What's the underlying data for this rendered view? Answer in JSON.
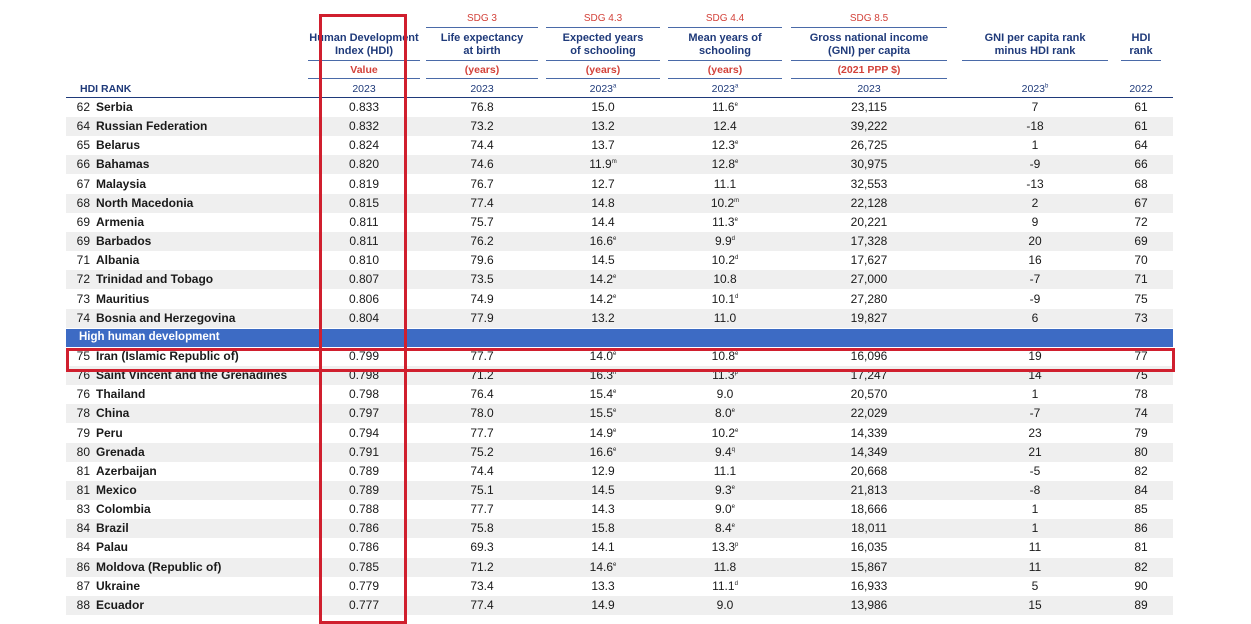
{
  "header": {
    "hdi_rank_label": "HDI RANK",
    "columns": [
      {
        "key": "hdi",
        "sdg": "",
        "title_line1": "Human Development",
        "title_line2": "Index (HDI)",
        "unit": "Value",
        "year": "2023",
        "year_sup": ""
      },
      {
        "key": "life",
        "sdg": "SDG 3",
        "title_line1": "Life expectancy",
        "title_line2": "at birth",
        "unit": "(years)",
        "year": "2023",
        "year_sup": ""
      },
      {
        "key": "exp",
        "sdg": "SDG 4.3",
        "title_line1": "Expected years",
        "title_line2": "of schooling",
        "unit": "(years)",
        "year": "2023",
        "year_sup": "a"
      },
      {
        "key": "mean",
        "sdg": "SDG 4.4",
        "title_line1": "Mean years of",
        "title_line2": "schooling",
        "unit": "(years)",
        "year": "2023",
        "year_sup": "a"
      },
      {
        "key": "gni",
        "sdg": "SDG 8.5",
        "title_line1": "Gross national income",
        "title_line2": "(GNI) per capita",
        "unit": "(2021 PPP $)",
        "year": "2023",
        "year_sup": ""
      },
      {
        "key": "gnirank",
        "sdg": "",
        "title_line1": "GNI per capita rank",
        "title_line2": "minus HDI rank",
        "unit": "",
        "year": "2023",
        "year_sup": "b"
      },
      {
        "key": "hdirank",
        "sdg": "",
        "title_line1": "HDI",
        "title_line2": "rank",
        "unit": "",
        "year": "2022",
        "year_sup": ""
      }
    ]
  },
  "group_band": "High human development",
  "rows": [
    {
      "rank": "62",
      "country": "Serbia",
      "hdi": "0.833",
      "life": "76.8",
      "exp": "15.0",
      "exp_sup": "",
      "mean": "11.6",
      "mean_sup": "e",
      "gni": "23,115",
      "gnirank": "7",
      "hdirank": "61"
    },
    {
      "rank": "64",
      "country": "Russian Federation",
      "hdi": "0.832",
      "life": "73.2",
      "exp": "13.2",
      "exp_sup": "",
      "mean": "12.4",
      "mean_sup": "",
      "gni": "39,222",
      "gnirank": "-18",
      "hdirank": "61"
    },
    {
      "rank": "65",
      "country": "Belarus",
      "hdi": "0.824",
      "life": "74.4",
      "exp": "13.7",
      "exp_sup": "",
      "mean": "12.3",
      "mean_sup": "e",
      "gni": "26,725",
      "gnirank": "1",
      "hdirank": "64"
    },
    {
      "rank": "66",
      "country": "Bahamas",
      "hdi": "0.820",
      "life": "74.6",
      "exp": "11.9",
      "exp_sup": "m",
      "mean": "12.8",
      "mean_sup": "e",
      "gni": "30,975",
      "gnirank": "-9",
      "hdirank": "66"
    },
    {
      "rank": "67",
      "country": "Malaysia",
      "hdi": "0.819",
      "life": "76.7",
      "exp": "12.7",
      "exp_sup": "",
      "mean": "11.1",
      "mean_sup": "",
      "gni": "32,553",
      "gnirank": "-13",
      "hdirank": "68"
    },
    {
      "rank": "68",
      "country": "North Macedonia",
      "hdi": "0.815",
      "life": "77.4",
      "exp": "14.8",
      "exp_sup": "",
      "mean": "10.2",
      "mean_sup": "m",
      "gni": "22,128",
      "gnirank": "2",
      "hdirank": "67"
    },
    {
      "rank": "69",
      "country": "Armenia",
      "hdi": "0.811",
      "life": "75.7",
      "exp": "14.4",
      "exp_sup": "",
      "mean": "11.3",
      "mean_sup": "e",
      "gni": "20,221",
      "gnirank": "9",
      "hdirank": "72"
    },
    {
      "rank": "69",
      "country": "Barbados",
      "hdi": "0.811",
      "life": "76.2",
      "exp": "16.6",
      "exp_sup": "e",
      "mean": "9.9",
      "mean_sup": "d",
      "gni": "17,328",
      "gnirank": "20",
      "hdirank": "69"
    },
    {
      "rank": "71",
      "country": "Albania",
      "hdi": "0.810",
      "life": "79.6",
      "exp": "14.5",
      "exp_sup": "",
      "mean": "10.2",
      "mean_sup": "d",
      "gni": "17,627",
      "gnirank": "16",
      "hdirank": "70"
    },
    {
      "rank": "72",
      "country": "Trinidad and Tobago",
      "hdi": "0.807",
      "life": "73.5",
      "exp": "14.2",
      "exp_sup": "e",
      "mean": "10.8",
      "mean_sup": "",
      "gni": "27,000",
      "gnirank": "-7",
      "hdirank": "71"
    },
    {
      "rank": "73",
      "country": "Mauritius",
      "hdi": "0.806",
      "life": "74.9",
      "exp": "14.2",
      "exp_sup": "e",
      "mean": "10.1",
      "mean_sup": "d",
      "gni": "27,280",
      "gnirank": "-9",
      "hdirank": "75"
    },
    {
      "rank": "74",
      "country": "Bosnia and Herzegovina",
      "hdi": "0.804",
      "life": "77.9",
      "exp": "13.2",
      "exp_sup": "",
      "mean": "11.0",
      "mean_sup": "",
      "gni": "19,827",
      "gnirank": "6",
      "hdirank": "73"
    },
    {
      "rank": "75",
      "country": "Iran (Islamic Republic of)",
      "hdi": "0.799",
      "life": "77.7",
      "exp": "14.0",
      "exp_sup": "e",
      "mean": "10.8",
      "mean_sup": "e",
      "gni": "16,096",
      "gnirank": "19",
      "hdirank": "77"
    },
    {
      "rank": "76",
      "country": "Saint Vincent and the Grenadines",
      "hdi": "0.798",
      "life": "71.2",
      "exp": "16.3",
      "exp_sup": "n",
      "mean": "11.3",
      "mean_sup": "p",
      "gni": "17,247",
      "gnirank": "14",
      "hdirank": "75"
    },
    {
      "rank": "76",
      "country": "Thailand",
      "hdi": "0.798",
      "life": "76.4",
      "exp": "15.4",
      "exp_sup": "e",
      "mean": "9.0",
      "mean_sup": "",
      "gni": "20,570",
      "gnirank": "1",
      "hdirank": "78"
    },
    {
      "rank": "78",
      "country": "China",
      "hdi": "0.797",
      "life": "78.0",
      "exp": "15.5",
      "exp_sup": "e",
      "mean": "8.0",
      "mean_sup": "e",
      "gni": "22,029",
      "gnirank": "-7",
      "hdirank": "74"
    },
    {
      "rank": "79",
      "country": "Peru",
      "hdi": "0.794",
      "life": "77.7",
      "exp": "14.9",
      "exp_sup": "e",
      "mean": "10.2",
      "mean_sup": "e",
      "gni": "14,339",
      "gnirank": "23",
      "hdirank": "79"
    },
    {
      "rank": "80",
      "country": "Grenada",
      "hdi": "0.791",
      "life": "75.2",
      "exp": "16.6",
      "exp_sup": "e",
      "mean": "9.4",
      "mean_sup": "q",
      "gni": "14,349",
      "gnirank": "21",
      "hdirank": "80"
    },
    {
      "rank": "81",
      "country": "Azerbaijan",
      "hdi": "0.789",
      "life": "74.4",
      "exp": "12.9",
      "exp_sup": "",
      "mean": "11.1",
      "mean_sup": "",
      "gni": "20,668",
      "gnirank": "-5",
      "hdirank": "82"
    },
    {
      "rank": "81",
      "country": "Mexico",
      "hdi": "0.789",
      "life": "75.1",
      "exp": "14.5",
      "exp_sup": "",
      "mean": "9.3",
      "mean_sup": "e",
      "gni": "21,813",
      "gnirank": "-8",
      "hdirank": "84"
    },
    {
      "rank": "83",
      "country": "Colombia",
      "hdi": "0.788",
      "life": "77.7",
      "exp": "14.3",
      "exp_sup": "",
      "mean": "9.0",
      "mean_sup": "e",
      "gni": "18,666",
      "gnirank": "1",
      "hdirank": "85"
    },
    {
      "rank": "84",
      "country": "Brazil",
      "hdi": "0.786",
      "life": "75.8",
      "exp": "15.8",
      "exp_sup": "",
      "mean": "8.4",
      "mean_sup": "e",
      "gni": "18,011",
      "gnirank": "1",
      "hdirank": "86"
    },
    {
      "rank": "84",
      "country": "Palau",
      "hdi": "0.786",
      "life": "69.3",
      "exp": "14.1",
      "exp_sup": "",
      "mean": "13.3",
      "mean_sup": "p",
      "gni": "16,035",
      "gnirank": "11",
      "hdirank": "81"
    },
    {
      "rank": "86",
      "country": "Moldova (Republic of)",
      "hdi": "0.785",
      "life": "71.2",
      "exp": "14.6",
      "exp_sup": "e",
      "mean": "11.8",
      "mean_sup": "",
      "gni": "15,867",
      "gnirank": "11",
      "hdirank": "82"
    },
    {
      "rank": "87",
      "country": "Ukraine",
      "hdi": "0.779",
      "life": "73.4",
      "exp": "13.3",
      "exp_sup": "",
      "mean": "11.1",
      "mean_sup": "d",
      "gni": "16,933",
      "gnirank": "5",
      "hdirank": "90"
    },
    {
      "rank": "88",
      "country": "Ecuador",
      "hdi": "0.777",
      "life": "77.4",
      "exp": "14.9",
      "exp_sup": "",
      "mean": "9.0",
      "mean_sup": "",
      "gni": "13,986",
      "gnirank": "15",
      "hdirank": "89"
    }
  ],
  "colors": {
    "header_blue": "#1f3a7a",
    "sdg_red": "#d3423a",
    "band_blue": "#3d6bc4",
    "stripe": "#efefef",
    "highlight": "#d01f2e"
  }
}
